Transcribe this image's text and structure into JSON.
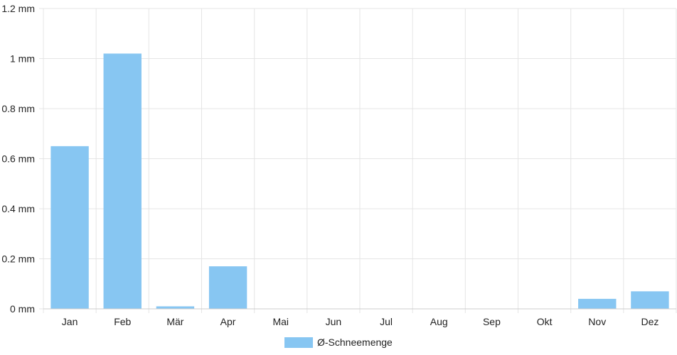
{
  "chart_data": {
    "type": "bar",
    "categories": [
      "Jan",
      "Feb",
      "Mär",
      "Apr",
      "Mai",
      "Jun",
      "Jul",
      "Aug",
      "Sep",
      "Okt",
      "Nov",
      "Dez"
    ],
    "series": [
      {
        "name": "Ø-Schneemenge",
        "values": [
          0.65,
          1.02,
          0.01,
          0.17,
          0,
          0,
          0,
          0,
          0,
          0,
          0.04,
          0.07
        ],
        "color": "#87c6f2"
      }
    ],
    "y_ticks": [
      "0 mm",
      "0.2 mm",
      "0.4 mm",
      "0.6 mm",
      "0.8 mm",
      "1 mm",
      "1.2 mm"
    ],
    "ylim": [
      0,
      1.2
    ],
    "grid": true,
    "legend_position": "bottom-center",
    "grid_color": "#e5e5e5",
    "axis_color": "#cccccc"
  }
}
